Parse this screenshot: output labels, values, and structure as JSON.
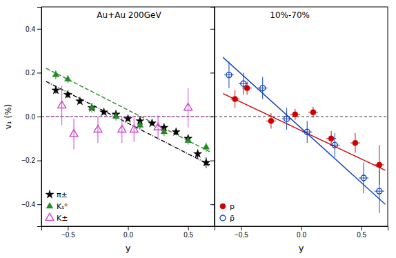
{
  "chart_data": [
    {
      "type": "scatter",
      "title": "Au+Au 200GeV",
      "xlabel": "y",
      "ylabel": "v₁ (%)",
      "xlim": [
        -0.72,
        0.72
      ],
      "ylim": [
        -0.5,
        0.5
      ],
      "xticks": [
        {
          "value": -0.5,
          "label": "−0.5"
        },
        {
          "value": 0.0,
          "label": "0.0"
        },
        {
          "value": 0.5,
          "label": "0.5"
        }
      ],
      "yticks": [
        {
          "value": -0.4,
          "label": "−0.4"
        },
        {
          "value": -0.2,
          "label": "−0.2"
        },
        {
          "value": 0.0,
          "label": "0.0"
        },
        {
          "value": 0.2,
          "label": "0.2"
        },
        {
          "value": 0.4,
          "label": "0.4"
        }
      ],
      "hline": 0,
      "legend": "lower left",
      "series": [
        {
          "type": "line",
          "color": "#000000",
          "line_style": "dashdot",
          "x": [
            -0.68,
            0.68
          ],
          "values": [
            0.16,
            -0.22
          ]
        },
        {
          "type": "line",
          "color": "#228B22",
          "line_style": "dashed",
          "x": [
            -0.68,
            0.68
          ],
          "values": [
            0.22,
            -0.16
          ]
        },
        {
          "type": "line",
          "color": "#CC44CC",
          "line_style": "dotted",
          "x": [
            -0.68,
            0.68
          ],
          "values": [
            0.0,
            0.0
          ]
        },
        {
          "type": "scatter",
          "name": "π±",
          "color": "#000000",
          "marker": "star",
          "x": [
            -0.6,
            -0.5,
            -0.4,
            -0.3,
            -0.2,
            -0.1,
            0.0,
            0.1,
            0.2,
            0.3,
            0.4,
            0.5,
            0.58,
            0.65
          ],
          "values": [
            0.12,
            0.1,
            0.07,
            0.04,
            0.02,
            0.01,
            -0.01,
            -0.02,
            -0.03,
            -0.05,
            -0.07,
            -0.1,
            -0.17,
            -0.21
          ],
          "errors": [
            0.015,
            0.015,
            0.012,
            0.01,
            0.008,
            0.008,
            0.007,
            0.007,
            0.008,
            0.009,
            0.01,
            0.012,
            0.02,
            0.025
          ]
        },
        {
          "type": "scatter",
          "name": "Kₛ⁰",
          "color": "#228B22",
          "marker": "triangle",
          "x": [
            -0.6,
            -0.5,
            -0.3,
            -0.1,
            0.1,
            0.3,
            0.5,
            0.65
          ],
          "values": [
            0.19,
            0.17,
            0.04,
            0.0,
            -0.04,
            -0.07,
            -0.11,
            -0.14
          ],
          "errors": [
            0.02,
            0.018,
            0.022,
            0.018,
            0.018,
            0.02,
            0.018,
            0.02
          ]
        },
        {
          "type": "scatter",
          "name": "K±",
          "color": "#CC44CC",
          "marker": "triangle-open",
          "x": [
            -0.55,
            -0.45,
            -0.25,
            -0.05,
            0.05,
            0.25,
            0.5
          ],
          "values": [
            0.05,
            -0.08,
            -0.06,
            -0.06,
            -0.06,
            -0.05,
            0.04
          ],
          "errors": [
            0.09,
            0.07,
            0.06,
            0.06,
            0.055,
            0.055,
            0.09
          ]
        }
      ]
    },
    {
      "type": "scatter",
      "title": "10%-70%",
      "xlabel": "y",
      "xlim": [
        -0.72,
        0.72
      ],
      "ylim": [
        -0.5,
        0.5
      ],
      "xticks": [
        {
          "value": -0.5,
          "label": "−0.5"
        },
        {
          "value": 0.0,
          "label": "0.0"
        },
        {
          "value": 0.5,
          "label": "0.5"
        }
      ],
      "yticks": [
        {
          "value": -0.4,
          "label": "−0.4"
        },
        {
          "value": -0.2,
          "label": "−0.2"
        },
        {
          "value": 0.0,
          "label": "0.0"
        },
        {
          "value": 0.2,
          "label": "0.2"
        },
        {
          "value": 0.4,
          "label": "0.4"
        }
      ],
      "tick_labels": "x",
      "hline": 0,
      "legend": "lower left",
      "series": [
        {
          "type": "line",
          "color": "#1144BB",
          "line_style": "solid",
          "x": [
            -0.65,
            0.7
          ],
          "values": [
            0.27,
            -0.4
          ]
        },
        {
          "type": "line",
          "color": "#CC0000",
          "line_style": "solid",
          "x": [
            -0.65,
            0.7
          ],
          "values": [
            0.105,
            -0.245
          ]
        },
        {
          "type": "scatter",
          "name": "p",
          "color": "#CC0000",
          "marker": "circle",
          "x": [
            -0.55,
            -0.45,
            -0.25,
            -0.05,
            0.1,
            0.25,
            0.45,
            0.65
          ],
          "values": [
            0.08,
            0.13,
            -0.02,
            0.01,
            0.02,
            -0.1,
            -0.12,
            -0.22
          ],
          "errors": [
            0.04,
            0.03,
            0.035,
            0.025,
            0.025,
            0.035,
            0.045,
            0.09
          ],
          "x_errors": [
            0.04,
            0.04,
            0.04,
            0.04,
            0.04,
            0.04,
            0.04,
            0.04
          ]
        },
        {
          "type": "scatter",
          "name": "p̄",
          "color": "#1144BB",
          "marker": "circle-open",
          "x": [
            -0.6,
            -0.48,
            -0.32,
            -0.12,
            0.05,
            0.28,
            0.52,
            0.65
          ],
          "values": [
            0.19,
            0.15,
            0.13,
            -0.01,
            -0.07,
            -0.13,
            -0.28,
            -0.34
          ],
          "errors": [
            0.06,
            0.05,
            0.05,
            0.05,
            0.05,
            0.055,
            0.07,
            0.1
          ],
          "x_errors": [
            0.04,
            0.04,
            0.04,
            0.04,
            0.04,
            0.04,
            0.04,
            0.04
          ]
        }
      ]
    }
  ]
}
